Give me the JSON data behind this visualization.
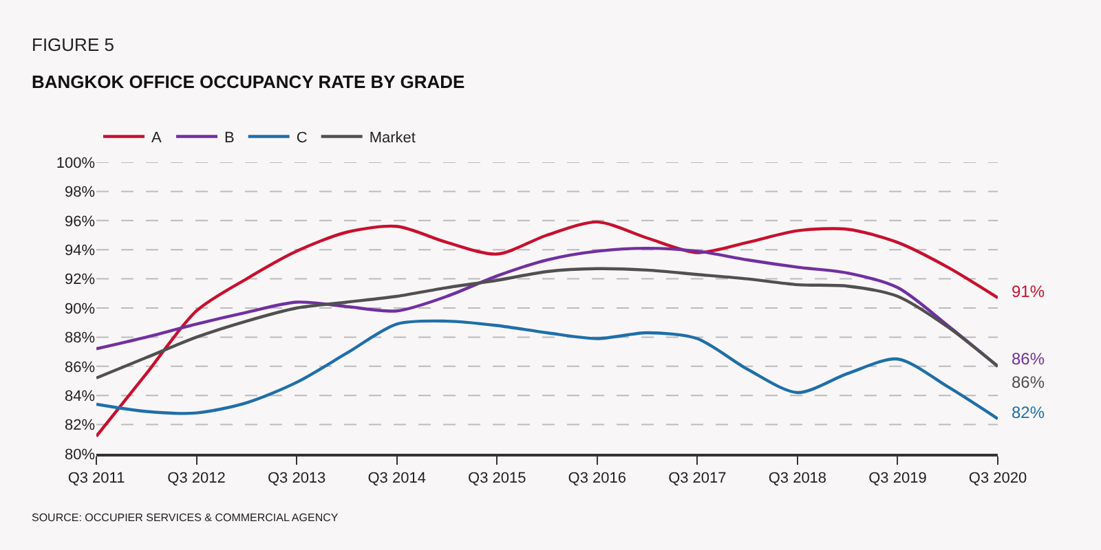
{
  "chart_data": {
    "type": "line",
    "subtitle": "FIGURE 5",
    "title": "BANGKOK OFFICE OCCUPANCY RATE BY GRADE",
    "categories": [
      "Q3 2011",
      null,
      "Q3 2012",
      null,
      "Q3 2013",
      null,
      "Q3 2014",
      null,
      "Q3 2015",
      null,
      "Q3 2016",
      null,
      "Q3 2017",
      null,
      "Q3 2018",
      null,
      "Q3 2019",
      null,
      "Q3 2020"
    ],
    "series": [
      {
        "name": "A",
        "color": "#c8102e",
        "values": [
          81.2,
          85.5,
          89.8,
          92.0,
          93.9,
          95.2,
          95.6,
          94.5,
          93.7,
          95.0,
          95.9,
          94.8,
          93.8,
          94.5,
          95.3,
          95.4,
          94.5,
          92.8,
          90.7
        ]
      },
      {
        "name": "B",
        "color": "#7030a0",
        "values": [
          87.2,
          88.0,
          88.9,
          89.7,
          90.4,
          90.1,
          89.8,
          90.8,
          92.2,
          93.3,
          93.9,
          94.1,
          93.9,
          93.3,
          92.8,
          92.4,
          91.4,
          88.8,
          86.0
        ]
      },
      {
        "name": "C",
        "color": "#1f6fa8",
        "values": [
          83.4,
          82.9,
          82.8,
          83.5,
          84.9,
          86.9,
          88.9,
          89.1,
          88.8,
          88.3,
          87.9,
          88.3,
          87.9,
          85.8,
          84.2,
          85.5,
          86.5,
          84.6,
          82.4
        ]
      },
      {
        "name": "Market",
        "color": "#505050",
        "values": [
          85.2,
          86.6,
          88.0,
          89.1,
          90.0,
          90.4,
          90.8,
          91.4,
          91.9,
          92.5,
          92.7,
          92.6,
          92.3,
          92.0,
          91.6,
          91.5,
          90.8,
          88.7,
          86.0
        ]
      }
    ],
    "ylim": [
      80,
      100
    ],
    "yticks": [
      {
        "value": 80,
        "label": "80%"
      },
      {
        "value": 82,
        "label": "82%"
      },
      {
        "value": 84,
        "label": "84%"
      },
      {
        "value": 86,
        "label": "86%"
      },
      {
        "value": 88,
        "label": "88%"
      },
      {
        "value": 90,
        "label": "90%"
      },
      {
        "value": 92,
        "label": "92%"
      },
      {
        "value": 94,
        "label": "94%"
      },
      {
        "value": 96,
        "label": "96%"
      },
      {
        "value": 98,
        "label": "98%"
      },
      {
        "value": 100,
        "label": "100%"
      }
    ],
    "grid": "y",
    "legend": "top left",
    "marker": "none",
    "line_style": "solid",
    "annotations": [
      {
        "text": "91%",
        "x": "Q3 2020",
        "y": 90.7
      },
      {
        "text": "86%",
        "x": "Q3 2020",
        "y": 86.0
      },
      {
        "text": "86%",
        "x": "Q3 2020",
        "y": 86.0
      },
      {
        "text": "82%",
        "x": "Q3 2020",
        "y": 82.4
      },
      "SOURCE: OCCUPIER SERVICES & COMMERCIAL AGENCY"
    ]
  }
}
